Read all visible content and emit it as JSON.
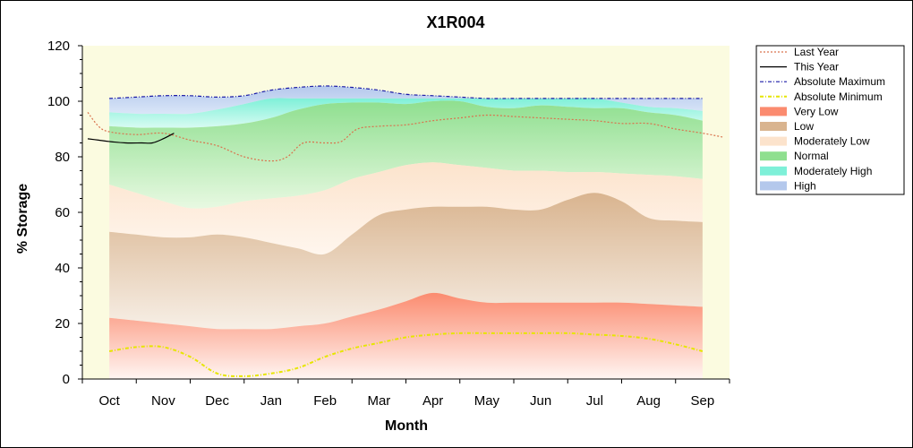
{
  "chart_data": {
    "type": "area",
    "title": "X1R004",
    "xlabel": "Month",
    "ylabel": "% Storage",
    "ylim": [
      0,
      120
    ],
    "yticks": [
      0,
      20,
      40,
      60,
      80,
      100,
      120
    ],
    "x_range": [
      -0.5,
      11.5
    ],
    "categories": [
      "Oct",
      "Nov",
      "Dec",
      "Jan",
      "Feb",
      "Mar",
      "Apr",
      "May",
      "Jun",
      "Jul",
      "Aug",
      "Sep"
    ],
    "band_x": [
      0,
      0.5,
      1,
      1.5,
      2,
      2.5,
      3,
      3.5,
      4,
      4.5,
      5,
      5.5,
      6,
      6.5,
      7,
      7.5,
      8,
      8.5,
      9,
      9.5,
      10,
      10.5,
      11
    ],
    "bands": [
      {
        "name": "Very Low",
        "color_top": "#fb8b6f",
        "color_bottom": "#fff5f2",
        "upper": [
          22,
          21,
          20,
          19,
          18,
          18,
          18,
          19,
          20,
          22.5,
          25,
          28,
          31,
          29,
          27.5,
          27.5,
          27.5,
          27.5,
          27.5,
          27.5,
          27,
          26.5,
          26
        ]
      },
      {
        "name": "Low",
        "color_top": "#d9b48f",
        "color_bottom": "#f7efe6",
        "upper": [
          53,
          52,
          51,
          51,
          52,
          51,
          49,
          47,
          45,
          52,
          59,
          61,
          62,
          62,
          62,
          61,
          61,
          64.5,
          67,
          64,
          58,
          57,
          56.5
        ]
      },
      {
        "name": "Moderately Low",
        "color_top": "#fce3cc",
        "color_bottom": "#fff6ee",
        "upper": [
          70,
          67,
          64,
          61.5,
          62,
          64,
          65,
          66,
          68,
          72,
          74.5,
          77,
          78,
          77,
          76,
          75,
          75,
          74.5,
          74.5,
          74,
          73.5,
          73,
          72
        ]
      },
      {
        "name": "Normal",
        "color_top": "#8fdf8f",
        "color_bottom": "#e8f9e2",
        "upper": [
          91,
          90.5,
          90.5,
          90.5,
          91,
          92,
          94,
          97,
          99,
          99.5,
          99.5,
          99,
          100,
          100,
          98,
          97.5,
          98.5,
          98,
          97.5,
          97.5,
          96,
          95,
          93
        ]
      },
      {
        "name": "Moderately High",
        "color_top": "#7ef0d8",
        "color_bottom": "#d8fbf2",
        "upper": [
          96,
          95.5,
          95.5,
          95.5,
          97,
          99,
          101,
          101,
          101,
          101,
          101,
          101,
          101,
          101,
          101,
          101,
          101,
          101,
          101,
          99.5,
          98,
          97.5,
          96.5
        ]
      },
      {
        "name": "High",
        "color_top": "#b4c8ec",
        "color_bottom": "#dae6f8",
        "upper": [
          101,
          101.5,
          102,
          102,
          101.5,
          102,
          104,
          105,
          105.5,
          105,
          104,
          102.5,
          102,
          101.5,
          101,
          101,
          101,
          101,
          101,
          101,
          101,
          101,
          101
        ]
      }
    ],
    "series": [
      {
        "name": "Last Year",
        "color": "#d9734e",
        "style": "dotted",
        "x": [
          -0.4,
          -0.2,
          0,
          0.5,
          1,
          1.5,
          2,
          2.5,
          3,
          3.3,
          3.6,
          4,
          4.3,
          4.6,
          5,
          5.5,
          6,
          6.5,
          7,
          7.5,
          8,
          8.5,
          9,
          9.5,
          10,
          10.5,
          11,
          11.4
        ],
        "y": [
          96,
          91,
          89,
          88,
          88.5,
          86,
          84,
          80,
          78.5,
          80,
          85,
          85,
          85.5,
          90,
          91,
          91.5,
          93,
          94,
          95,
          94.5,
          94,
          93.5,
          93,
          92,
          92,
          90,
          88.5,
          87
        ]
      },
      {
        "name": "This Year",
        "color": "#000000",
        "style": "solid",
        "x": [
          -0.4,
          -0.2,
          0,
          0.3,
          0.6,
          0.8,
          1,
          1.2
        ],
        "y": [
          86.5,
          86,
          85.5,
          85,
          85,
          85,
          86.5,
          88.5
        ]
      },
      {
        "name": "Absolute Maximum",
        "color": "#1a1aa6",
        "style": "dashdot",
        "x": [
          0,
          0.5,
          1,
          1.5,
          2,
          2.5,
          3,
          3.5,
          4,
          4.5,
          5,
          5.5,
          6,
          6.5,
          7,
          7.5,
          8,
          8.5,
          9,
          9.5,
          10,
          10.5,
          11
        ],
        "y": [
          101,
          101.5,
          102,
          102,
          101.5,
          102,
          104,
          105,
          105.5,
          105,
          104,
          102.5,
          102,
          101.5,
          101,
          101,
          101,
          101,
          101,
          101,
          101,
          101,
          101
        ]
      },
      {
        "name": "Absolute Minimum",
        "color": "#e6e600",
        "style": "dashdot",
        "x": [
          0,
          0.5,
          1,
          1.5,
          2,
          2.5,
          3,
          3.5,
          4,
          4.5,
          5,
          5.5,
          6,
          6.5,
          7,
          7.5,
          8,
          8.5,
          9,
          9.5,
          10,
          10.5,
          11
        ],
        "y": [
          10,
          11.5,
          11.5,
          8,
          2,
          1,
          2,
          4,
          8,
          11,
          13,
          15,
          16,
          16.5,
          16.5,
          16.5,
          16.5,
          16.5,
          16,
          15.5,
          14.5,
          12.5,
          10
        ]
      }
    ],
    "legend_placement": "right",
    "legend": [
      {
        "label": "Last Year",
        "kind": "line",
        "color": "#d9734e",
        "style": "dotted"
      },
      {
        "label": "This Year",
        "kind": "line",
        "color": "#000000",
        "style": "solid"
      },
      {
        "label": "Absolute Maximum",
        "kind": "line",
        "color": "#1a1aa6",
        "style": "dashdot"
      },
      {
        "label": "Absolute Minimum",
        "kind": "line",
        "color": "#e6e600",
        "style": "dashdot"
      },
      {
        "label": "Very Low",
        "kind": "box",
        "color": "#fb8b6f"
      },
      {
        "label": "Low",
        "kind": "box",
        "color": "#d9b48f"
      },
      {
        "label": "Moderately Low",
        "kind": "box",
        "color": "#fce3cc"
      },
      {
        "label": "Normal",
        "kind": "box",
        "color": "#8fdf8f"
      },
      {
        "label": "Moderately High",
        "kind": "box",
        "color": "#7ef0d8"
      },
      {
        "label": "High",
        "kind": "box",
        "color": "#b4c8ec"
      }
    ],
    "plot_background": "#fbfbe0"
  }
}
